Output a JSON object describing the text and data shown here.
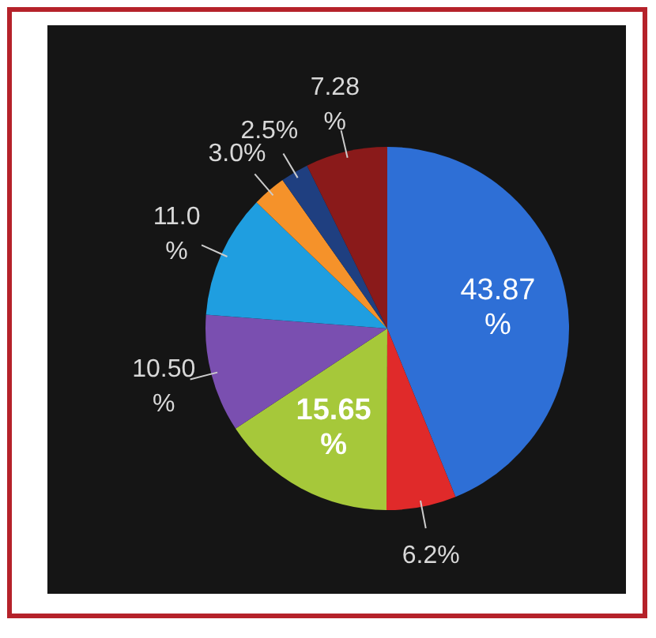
{
  "chart_data": {
    "type": "pie",
    "categories": [
      null,
      null,
      null,
      null,
      null,
      null,
      null,
      null
    ],
    "values": [
      43.87,
      6.2,
      15.65,
      10.5,
      11.0,
      3.0,
      2.5,
      7.28
    ],
    "colors": [
      "#2e6fd6",
      "#e02a2a",
      "#a6c83a",
      "#7a4fb0",
      "#1f9ee0",
      "#f5922a",
      "#1f3f80",
      "#8a1a1a"
    ],
    "value_labels": [
      "43.87 %",
      "6.2%",
      "15.65 %",
      "10.50 %",
      "11.0 %",
      "3.0%",
      "2.5%",
      "7.28 %"
    ]
  }
}
